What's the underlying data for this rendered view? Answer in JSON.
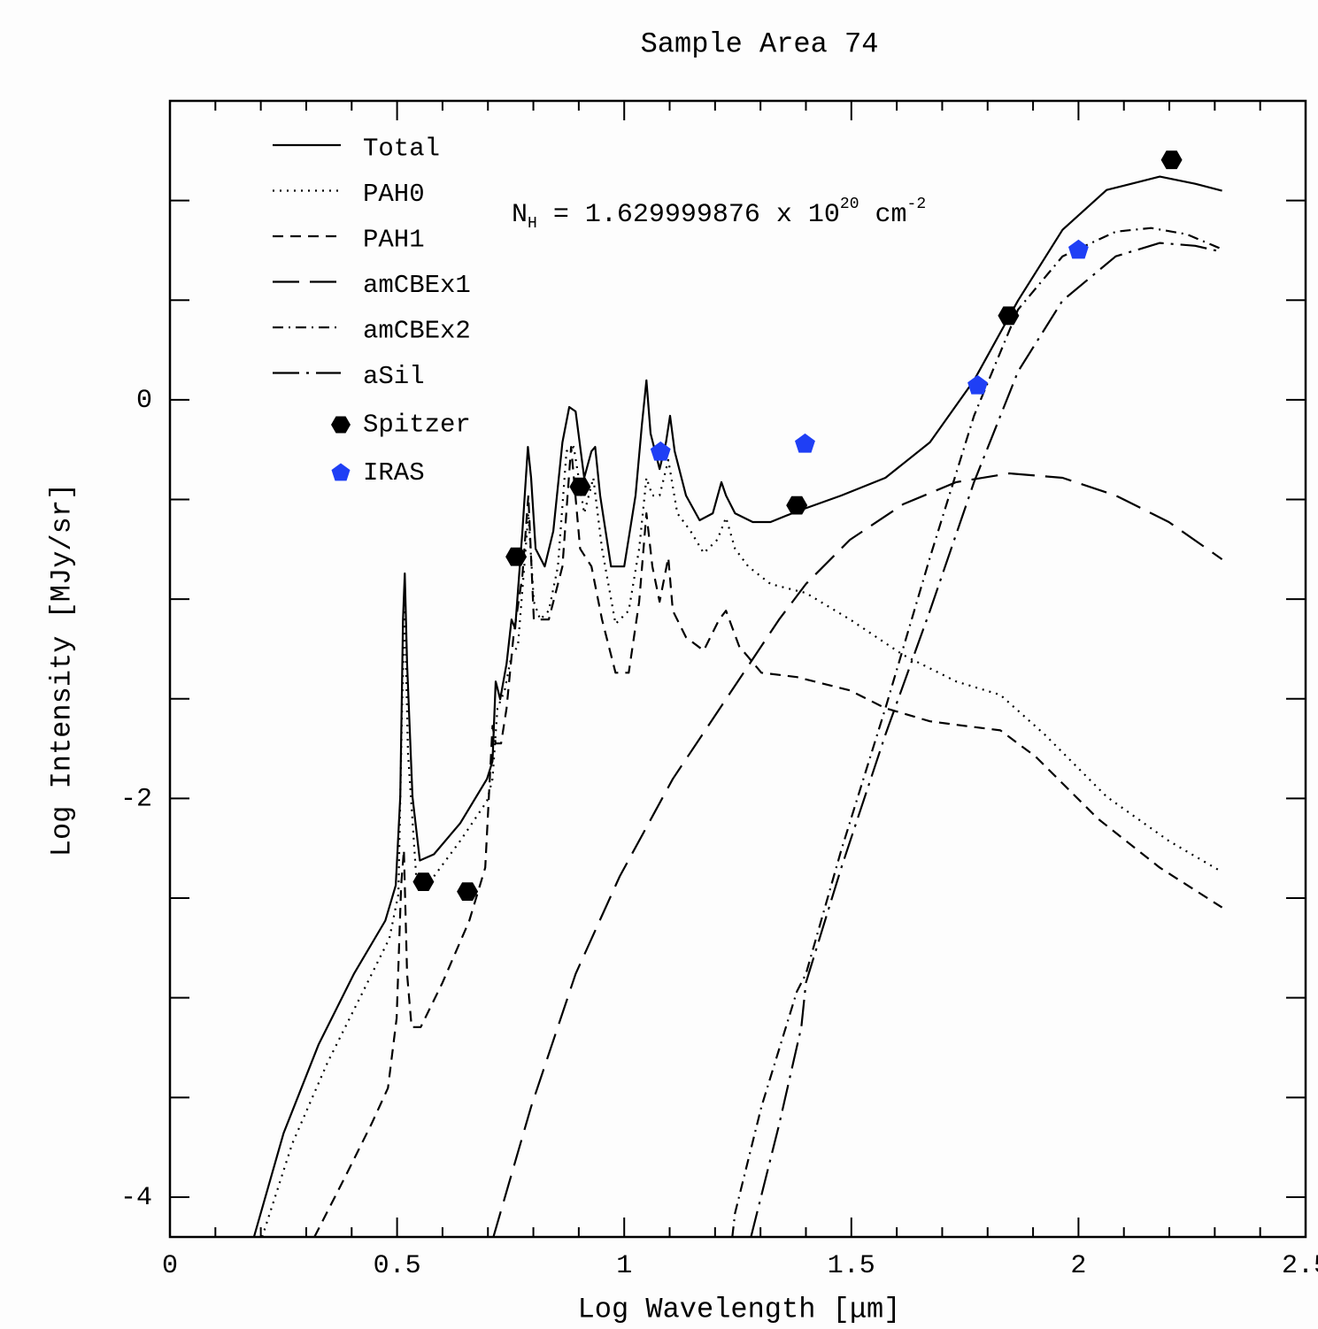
{
  "chart_data": {
    "type": "line",
    "title": "Sample Area 74",
    "x_label": "Log Wavelength [μm]",
    "y_label": "Log Intensity [MJy/sr]",
    "annotation": [
      "N",
      "H",
      " = 1.629999876 x 10",
      "20",
      " cm",
      "-2"
    ],
    "xlim": [
      0,
      2.5
    ],
    "ylim": [
      -4.2,
      1.5
    ],
    "xticks": [
      0,
      0.5,
      1,
      1.5,
      2,
      2.5
    ],
    "yticks": [
      -4,
      -2,
      0
    ],
    "xminorticks": [
      0.1,
      0.2,
      0.3,
      0.4,
      0.6,
      0.7,
      0.8,
      0.9,
      1.1,
      1.2,
      1.3,
      1.4,
      1.6,
      1.7,
      1.8,
      1.9,
      2.1,
      2.2,
      2.3,
      2.4
    ],
    "yminorticks": [
      -3.5,
      -3,
      -2.5,
      -1.5,
      -1,
      -0.5,
      0.5,
      1
    ],
    "legend": "upper left",
    "series": [
      {
        "name": "Total",
        "type": "line",
        "color": "#000000",
        "dash": "none",
        "x": [
          0.185,
          0.25,
          0.327,
          0.405,
          0.474,
          0.497,
          0.507,
          0.513,
          0.517,
          0.522,
          0.534,
          0.55,
          0.581,
          0.639,
          0.698,
          0.71,
          0.717,
          0.727,
          0.741,
          0.752,
          0.76,
          0.776,
          0.788,
          0.795,
          0.805,
          0.825,
          0.844,
          0.864,
          0.879,
          0.893,
          0.912,
          0.928,
          0.936,
          0.947,
          0.971,
          1.0,
          1.025,
          1.039,
          1.049,
          1.058,
          1.078,
          1.092,
          1.101,
          1.111,
          1.136,
          1.166,
          1.195,
          1.214,
          1.224,
          1.244,
          1.283,
          1.322,
          1.38,
          1.478,
          1.575,
          1.673,
          1.77,
          1.867,
          1.965,
          2.062,
          2.179,
          2.257,
          2.316
        ],
        "y": [
          -4.2,
          -3.68,
          -3.236,
          -2.88,
          -2.613,
          -2.436,
          -1.991,
          -1.102,
          -0.871,
          -1.324,
          -1.991,
          -2.311,
          -2.28,
          -2.124,
          -1.902,
          -1.813,
          -1.413,
          -1.502,
          -1.324,
          -1.102,
          -1.147,
          -0.658,
          -0.236,
          -0.391,
          -0.747,
          -0.836,
          -0.658,
          -0.213,
          -0.036,
          -0.058,
          -0.391,
          -0.258,
          -0.236,
          -0.48,
          -0.836,
          -0.836,
          -0.48,
          -0.124,
          0.098,
          -0.169,
          -0.347,
          -0.213,
          -0.08,
          -0.258,
          -0.48,
          -0.604,
          -0.569,
          -0.413,
          -0.48,
          -0.569,
          -0.613,
          -0.613,
          -0.56,
          -0.48,
          -0.391,
          -0.213,
          0.098,
          0.498,
          0.853,
          1.053,
          1.12,
          1.084,
          1.049
        ]
      },
      {
        "name": "PAH0",
        "type": "line",
        "color": "#000000",
        "dash": "2,6",
        "x": [
          0.203,
          0.269,
          0.347,
          0.425,
          0.483,
          0.503,
          0.511,
          0.517,
          0.524,
          0.542,
          0.581,
          0.639,
          0.698,
          0.71,
          0.721,
          0.737,
          0.752,
          0.766,
          0.78,
          0.789,
          0.801,
          0.815,
          0.834,
          0.854,
          0.873,
          0.889,
          0.912,
          0.932,
          0.951,
          0.981,
          1.01,
          1.033,
          1.049,
          1.062,
          1.078,
          1.097,
          1.117,
          1.146,
          1.175,
          1.205,
          1.224,
          1.244,
          1.273,
          1.322,
          1.4,
          1.497,
          1.614,
          1.731,
          1.828,
          1.926,
          2.062,
          2.199,
          2.316
        ],
        "y": [
          -4.2,
          -3.733,
          -3.324,
          -2.969,
          -2.702,
          -2.48,
          -1.547,
          -1.013,
          -1.769,
          -2.391,
          -2.391,
          -2.213,
          -2.013,
          -1.902,
          -1.547,
          -1.458,
          -1.28,
          -1.236,
          -0.836,
          -0.569,
          -1.013,
          -1.102,
          -1.058,
          -0.836,
          -0.258,
          -0.236,
          -0.569,
          -0.391,
          -0.747,
          -1.124,
          -1.058,
          -0.747,
          -0.391,
          -0.48,
          -0.48,
          -0.302,
          -0.569,
          -0.658,
          -0.769,
          -0.702,
          -0.591,
          -0.747,
          -0.836,
          -0.924,
          -0.969,
          -1.102,
          -1.28,
          -1.413,
          -1.48,
          -1.68,
          -1.991,
          -2.213,
          -2.369
        ]
      },
      {
        "name": "PAH1",
        "type": "line",
        "color": "#000000",
        "dash": "12,8",
        "x": [
          0.318,
          0.386,
          0.444,
          0.48,
          0.499,
          0.509,
          0.515,
          0.522,
          0.532,
          0.552,
          0.6,
          0.659,
          0.694,
          0.702,
          0.71,
          0.717,
          0.729,
          0.741,
          0.756,
          0.776,
          0.789,
          0.801,
          0.834,
          0.864,
          0.883,
          0.903,
          0.928,
          0.951,
          0.981,
          1.01,
          1.033,
          1.049,
          1.062,
          1.078,
          1.097,
          1.107,
          1.136,
          1.175,
          1.209,
          1.224,
          1.253,
          1.302,
          1.38,
          1.497,
          1.575,
          1.673,
          1.75,
          1.828,
          1.906,
          2.043,
          2.179,
          2.316
        ],
        "y": [
          -4.2,
          -3.897,
          -3.631,
          -3.453,
          -3.102,
          -2.436,
          -2.258,
          -2.88,
          -3.147,
          -3.147,
          -2.924,
          -2.613,
          -2.347,
          -1.991,
          -1.636,
          -1.724,
          -1.724,
          -1.547,
          -1.191,
          -0.88,
          -0.48,
          -1.102,
          -1.102,
          -0.836,
          -0.236,
          -0.747,
          -0.836,
          -1.102,
          -1.369,
          -1.369,
          -1.013,
          -0.569,
          -0.836,
          -1.013,
          -0.791,
          -1.058,
          -1.191,
          -1.258,
          -1.102,
          -1.058,
          -1.236,
          -1.369,
          -1.391,
          -1.458,
          -1.547,
          -1.613,
          -1.636,
          -1.658,
          -1.791,
          -2.102,
          -2.347,
          -2.547
        ]
      },
      {
        "name": "amCBEx1",
        "type": "line",
        "color": "#000000",
        "dash": "30,12",
        "x": [
          0.712,
          0.795,
          0.893,
          0.99,
          1.107,
          1.224,
          1.341,
          1.4,
          1.497,
          1.614,
          1.731,
          1.848,
          1.965,
          2.082,
          2.199,
          2.316
        ],
        "y": [
          -4.2,
          -3.547,
          -2.88,
          -2.391,
          -1.902,
          -1.502,
          -1.102,
          -0.924,
          -0.702,
          -0.524,
          -0.413,
          -0.369,
          -0.391,
          -0.48,
          -0.613,
          -0.8
        ]
      },
      {
        "name": "amCBEx2",
        "type": "line",
        "color": "#000000",
        "dash": "12,6,2,6",
        "x": [
          1.238,
          1.244,
          1.302,
          1.38,
          1.4,
          1.478,
          1.575,
          1.673,
          1.77,
          1.867,
          1.965,
          2.082,
          2.16,
          2.238,
          2.316
        ],
        "y": [
          -4.2,
          -4.08,
          -3.547,
          -2.969,
          -2.88,
          -2.258,
          -1.547,
          -0.791,
          -0.08,
          0.453,
          0.72,
          0.844,
          0.862,
          0.831,
          0.756
        ]
      },
      {
        "name": "aSil",
        "type": "line",
        "color": "#000000",
        "dash": "30,8,3,8",
        "x": [
          1.279,
          1.341,
          1.39,
          1.4,
          1.478,
          1.575,
          1.673,
          1.77,
          1.867,
          1.965,
          2.082,
          2.179,
          2.257,
          2.316
        ],
        "y": [
          -4.2,
          -3.636,
          -3.147,
          -2.924,
          -2.347,
          -1.68,
          -1.058,
          -0.413,
          0.142,
          0.498,
          0.72,
          0.787,
          0.773,
          0.742
        ]
      },
      {
        "name": "Spitzer",
        "type": "scatter",
        "color": "#000000",
        "marker": "hexagon",
        "x": [
          0.558,
          0.655,
          0.762,
          0.903,
          1.38,
          1.846,
          2.205
        ],
        "y": [
          -2.418,
          -2.467,
          -0.787,
          -0.436,
          -0.529,
          0.422,
          1.204
        ]
      },
      {
        "name": "IRAS",
        "type": "scatter",
        "color": "#1f3ff5",
        "marker": "pentagon",
        "x": [
          1.08,
          1.398,
          1.778,
          2.0
        ],
        "y": [
          -0.262,
          -0.222,
          0.071,
          0.751
        ]
      }
    ]
  }
}
